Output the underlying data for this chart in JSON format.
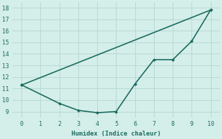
{
  "line1_x": [
    0,
    10
  ],
  "line1_y": [
    11.3,
    17.8
  ],
  "line2_x": [
    0,
    2,
    3,
    4,
    5,
    6,
    7,
    8,
    9,
    10
  ],
  "line2_y": [
    11.3,
    9.7,
    9.1,
    8.9,
    9.0,
    11.4,
    13.5,
    13.5,
    15.1,
    17.8
  ],
  "line_color": "#1a6b5e",
  "bg_color": "#d4eeea",
  "grid_color": "#b8d8d4",
  "xlabel": "Humidex (Indice chaleur)",
  "ylim": [
    8.5,
    18.5
  ],
  "xlim": [
    -0.5,
    10.5
  ],
  "yticks": [
    9,
    10,
    11,
    12,
    13,
    14,
    15,
    16,
    17,
    18
  ],
  "xticks": [
    0,
    1,
    2,
    3,
    4,
    5,
    6,
    7,
    8,
    9,
    10
  ],
  "marker": "D",
  "markersize": 2.5,
  "linewidth": 1.2
}
